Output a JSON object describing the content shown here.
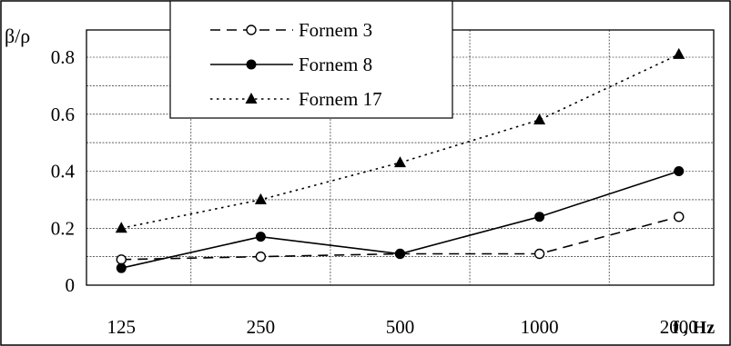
{
  "chart_data": {
    "type": "line",
    "categories": [
      "125",
      "250",
      "500",
      "1000",
      "2000"
    ],
    "ylabel": "β/ρ",
    "xlabel": "f , Hz",
    "ylim": [
      0,
      0.8
    ],
    "y_ticks": [
      "0",
      "0.2",
      "0.4",
      "0.6",
      "0.8"
    ],
    "grid": true,
    "legend_position": "top-center",
    "series": [
      {
        "name": "Fornem 3",
        "values": [
          0.09,
          0.1,
          0.11,
          0.11,
          0.24
        ],
        "line_style": "dashed",
        "marker": "open-circle",
        "color": "#000000"
      },
      {
        "name": "Fornem 8",
        "values": [
          0.06,
          0.17,
          0.11,
          0.24,
          0.4
        ],
        "line_style": "solid",
        "marker": "filled-circle",
        "color": "#000000"
      },
      {
        "name": "Fornem 17",
        "values": [
          0.2,
          0.3,
          0.43,
          0.58,
          0.81
        ],
        "line_style": "dotted",
        "marker": "filled-triangle",
        "color": "#000000"
      }
    ]
  }
}
